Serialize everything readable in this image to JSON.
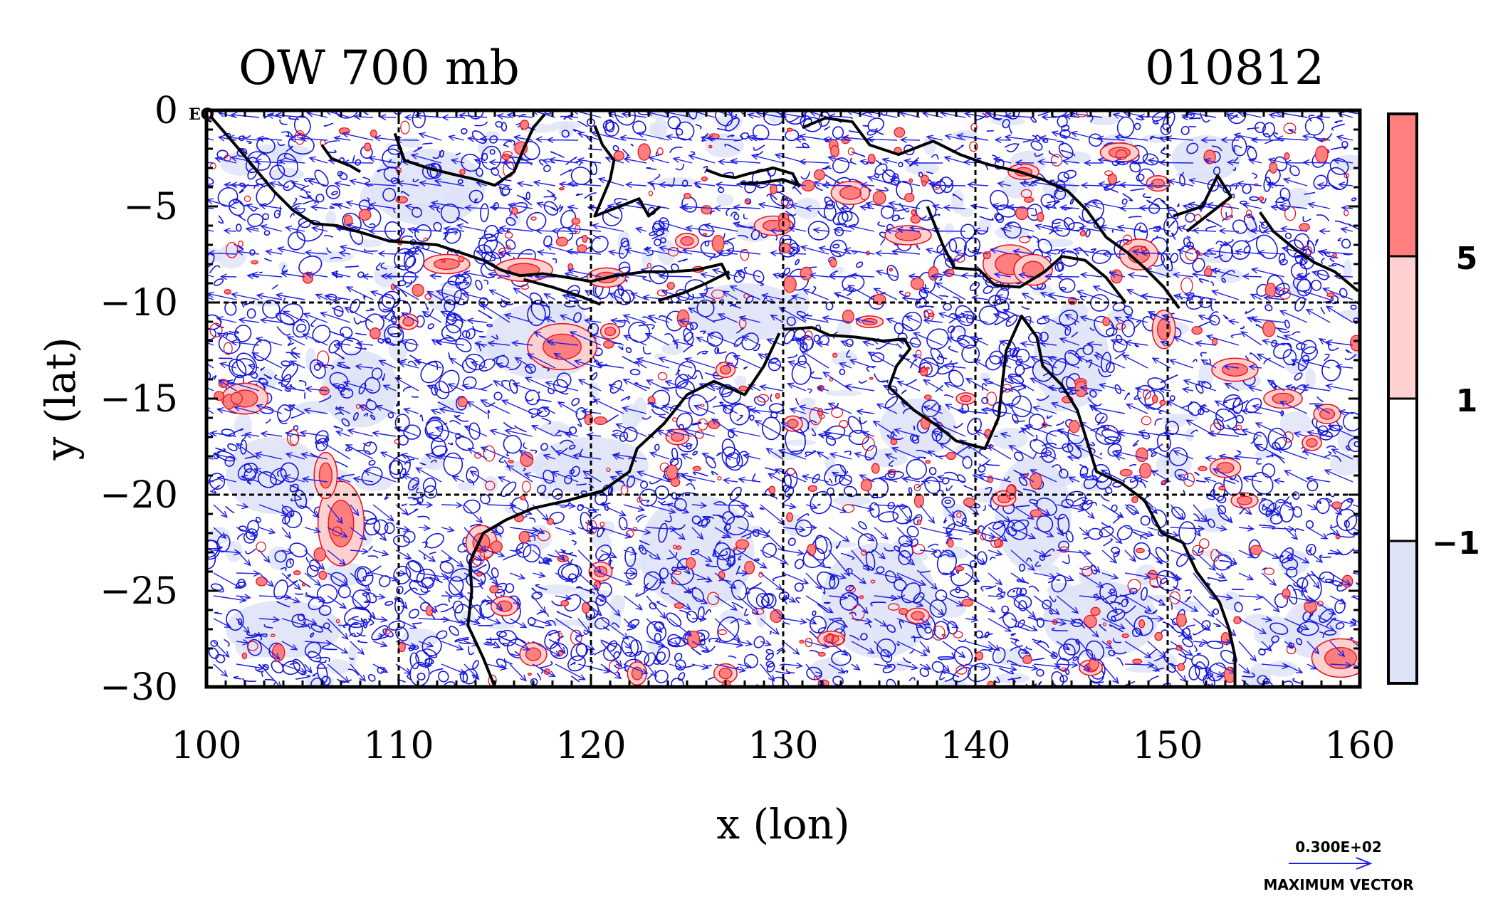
{
  "chart_data": {
    "type": "heatmap",
    "title_left": "OW 700 mb",
    "title_right": "010812",
    "xlabel": "x (lon)",
    "ylabel": "y (lat)",
    "xlim": [
      100,
      160
    ],
    "ylim": [
      -30,
      0
    ],
    "x_ticks": [
      100,
      110,
      120,
      130,
      140,
      150,
      160
    ],
    "y_ticks": [
      0,
      -5,
      -10,
      -15,
      -20,
      -25,
      -30
    ],
    "x_tick_labels": [
      "100",
      "110",
      "120",
      "130",
      "140",
      "150",
      "160"
    ],
    "y_tick_labels": [
      "0",
      "−5",
      "−10",
      "−15",
      "−20",
      "−25",
      "−30"
    ],
    "grid": "dashed-10deg",
    "corner_label": "EQ",
    "colorbar": {
      "levels": [
        -1,
        1,
        5
      ],
      "labels": [
        "5",
        "1",
        "−1"
      ],
      "colors": [
        "#ff7f7f",
        "#ffd0d0",
        "#ffffff",
        "#dde2f7"
      ]
    },
    "contour_colors": {
      "positive": "#e8141e",
      "negative": "#1414d8"
    },
    "vector_color": "#1f1fe6",
    "vector_key": {
      "value": "0.300E+02",
      "label": "MAXIMUM VECTOR"
    },
    "red_features": [
      [
        118.5,
        -12.3,
        1.8,
        1.2
      ],
      [
        102,
        -15,
        1.2,
        0.8
      ],
      [
        107,
        -21.5,
        1.2,
        2.2
      ],
      [
        106.2,
        -19,
        0.6,
        1.2
      ],
      [
        141.8,
        -8,
        1.4,
        1.0
      ],
      [
        143,
        -8.3,
        1.0,
        0.8
      ],
      [
        148.5,
        -7.5,
        1.0,
        0.8
      ],
      [
        149.8,
        -11.4,
        0.6,
        1.0
      ],
      [
        153.5,
        -13.5,
        1.2,
        0.6
      ],
      [
        156,
        -15,
        1.0,
        0.5
      ],
      [
        158.3,
        -15.8,
        0.7,
        0.5
      ],
      [
        159,
        -28.5,
        1.5,
        1.0
      ],
      [
        157.5,
        -17.3,
        0.5,
        0.4
      ],
      [
        153,
        -18.6,
        0.8,
        0.5
      ],
      [
        154,
        -20.3,
        0.7,
        0.4
      ],
      [
        136.5,
        -6.5,
        1.2,
        0.5
      ],
      [
        133.5,
        -4.3,
        1.0,
        0.6
      ],
      [
        129.5,
        -6.0,
        1.0,
        0.5
      ],
      [
        112.5,
        -8.0,
        1.2,
        0.5
      ],
      [
        116.5,
        -8.3,
        1.5,
        0.6
      ],
      [
        120.8,
        -8.7,
        1.0,
        0.5
      ],
      [
        125.0,
        -6.8,
        0.6,
        0.4
      ],
      [
        114.3,
        -22.5,
        0.8,
        0.9
      ],
      [
        115.5,
        -25.8,
        0.7,
        0.5
      ],
      [
        117.0,
        -28.3,
        0.7,
        0.6
      ],
      [
        120.5,
        -24.0,
        0.6,
        0.5
      ],
      [
        122.4,
        -29.3,
        0.5,
        0.6
      ],
      [
        127.0,
        -29.3,
        0.6,
        0.5
      ],
      [
        132.5,
        -27.5,
        0.7,
        0.4
      ],
      [
        137.0,
        -26.3,
        0.6,
        0.4
      ],
      [
        141.5,
        -20.2,
        0.6,
        0.4
      ],
      [
        146.0,
        -29.0,
        0.6,
        0.4
      ],
      [
        110.5,
        -11.0,
        0.5,
        0.4
      ],
      [
        124.5,
        -17.0,
        0.6,
        0.4
      ],
      [
        134.5,
        -11.0,
        0.7,
        0.3
      ],
      [
        139.5,
        -15.0,
        0.5,
        0.3
      ],
      [
        147.5,
        -2.2,
        1.0,
        0.5
      ],
      [
        149.5,
        -3.8,
        0.6,
        0.4
      ],
      [
        142.5,
        -3.2,
        0.8,
        0.4
      ],
      [
        130.5,
        -16.3,
        0.5,
        0.4
      ],
      [
        127.0,
        -13.5,
        0.5,
        0.4
      ],
      [
        121.0,
        -11.5,
        0.5,
        0.4
      ]
    ],
    "blue_features": [
      [
        117.5,
        -12.0,
        3.0,
        2.0
      ],
      [
        103.5,
        -19.0,
        2.5,
        2.0
      ],
      [
        108.0,
        -14.5,
        2.0,
        2.0
      ],
      [
        104.0,
        -27.0,
        3.0,
        1.5
      ],
      [
        125.5,
        -23.0,
        3.0,
        3.0
      ],
      [
        135.0,
        -25.5,
        3.0,
        3.0
      ],
      [
        143.0,
        -21.0,
        2.0,
        3.0
      ],
      [
        152.0,
        -2.5,
        1.8,
        1.2
      ],
      [
        145.0,
        -13.0,
        2.0,
        2.5
      ],
      [
        137.0,
        -16.5,
        2.0,
        1.5
      ],
      [
        128.0,
        -10.5,
        3.0,
        1.5
      ],
      [
        111.5,
        -4.0,
        3.0,
        2.0
      ],
      [
        157.5,
        -27.0,
        1.5,
        1.5
      ],
      [
        146.5,
        -26.5,
        3.0,
        2.0
      ],
      [
        120.0,
        -18.5,
        3.0,
        1.5
      ]
    ],
    "coastlines": [
      [
        [
          100.2,
          -0.3
        ],
        [
          101.5,
          -1.8
        ],
        [
          102.5,
          -3.0
        ],
        [
          103.5,
          -4.2
        ],
        [
          104.5,
          -5.2
        ],
        [
          105.6,
          -5.9
        ],
        [
          106.8,
          -6.0
        ],
        [
          108.2,
          -6.4
        ],
        [
          109.5,
          -6.8
        ],
        [
          110.8,
          -6.9
        ],
        [
          112.0,
          -7.0
        ],
        [
          113.2,
          -7.4
        ],
        [
          114.4,
          -7.8
        ],
        [
          115.3,
          -8.3
        ],
        [
          116.3,
          -8.6
        ],
        [
          117.5,
          -8.5
        ],
        [
          118.8,
          -8.7
        ],
        [
          120.0,
          -8.9
        ],
        [
          121.3,
          -8.6
        ],
        [
          122.8,
          -8.4
        ],
        [
          124.2,
          -8.4
        ],
        [
          125.5,
          -8.3
        ],
        [
          126.8,
          -8.0
        ],
        [
          127.2,
          -8.8
        ]
      ],
      [
        [
          109.8,
          -1.2
        ],
        [
          110.3,
          -2.6
        ],
        [
          111.5,
          -3.0
        ],
        [
          112.7,
          -3.3
        ],
        [
          114.0,
          -3.6
        ],
        [
          115.0,
          -3.9
        ],
        [
          116.0,
          -3.2
        ],
        [
          116.5,
          -2.0
        ],
        [
          117.0,
          -0.9
        ],
        [
          117.6,
          -0.2
        ]
      ],
      [
        [
          120.2,
          -0.8
        ],
        [
          120.6,
          -1.8
        ],
        [
          121.2,
          -2.6
        ],
        [
          121.0,
          -3.6
        ],
        [
          120.5,
          -4.8
        ],
        [
          120.2,
          -5.5
        ],
        [
          121.5,
          -5.0
        ],
        [
          122.5,
          -4.6
        ],
        [
          123.0,
          -5.5
        ],
        [
          123.6,
          -5.0
        ]
      ],
      [
        [
          126.0,
          -3.1
        ],
        [
          126.8,
          -3.4
        ],
        [
          127.5,
          -3.5
        ],
        [
          128.2,
          -3.3
        ],
        [
          129.5,
          -3.0
        ],
        [
          130.5,
          -3.3
        ],
        [
          130.8,
          -3.9
        ],
        [
          130.0,
          -3.6
        ],
        [
          128.6,
          -3.8
        ],
        [
          127.8,
          -3.8
        ]
      ],
      [
        [
          131.0,
          -0.9
        ],
        [
          132.2,
          -0.4
        ],
        [
          133.6,
          -0.6
        ],
        [
          134.5,
          -1.8
        ],
        [
          136.0,
          -2.3
        ],
        [
          137.8,
          -1.6
        ],
        [
          139.2,
          -2.3
        ],
        [
          140.6,
          -2.8
        ],
        [
          142.3,
          -3.2
        ],
        [
          143.5,
          -3.6
        ],
        [
          144.8,
          -4.2
        ],
        [
          145.8,
          -5.2
        ],
        [
          146.8,
          -6.6
        ],
        [
          147.9,
          -7.4
        ],
        [
          148.8,
          -8.2
        ],
        [
          149.8,
          -9.2
        ],
        [
          150.6,
          -10.3
        ]
      ],
      [
        [
          137.5,
          -5.0
        ],
        [
          138.3,
          -7.0
        ],
        [
          138.9,
          -8.2
        ],
        [
          140.2,
          -8.3
        ],
        [
          141.0,
          -9.1
        ],
        [
          142.3,
          -9.2
        ],
        [
          143.6,
          -8.4
        ],
        [
          144.5,
          -7.6
        ],
        [
          145.7,
          -7.8
        ],
        [
          146.8,
          -8.7
        ],
        [
          147.8,
          -10.0
        ]
      ],
      [
        [
          150.3,
          -5.5
        ],
        [
          151.8,
          -5.0
        ],
        [
          152.2,
          -4.2
        ],
        [
          152.6,
          -3.4
        ],
        [
          153.3,
          -4.5
        ],
        [
          151.0,
          -6.3
        ]
      ],
      [
        [
          154.8,
          -5.3
        ],
        [
          155.5,
          -6.3
        ],
        [
          156.6,
          -7.2
        ],
        [
          157.6,
          -7.9
        ],
        [
          158.7,
          -8.4
        ],
        [
          159.9,
          -9.4
        ]
      ],
      [
        [
          130.0,
          -11.4
        ],
        [
          131.5,
          -11.3
        ],
        [
          132.4,
          -11.7
        ],
        [
          133.8,
          -11.8
        ],
        [
          135.2,
          -12.0
        ],
        [
          136.3,
          -11.9
        ],
        [
          136.6,
          -12.4
        ],
        [
          135.9,
          -13.3
        ],
        [
          135.5,
          -14.4
        ],
        [
          136.8,
          -15.6
        ],
        [
          138.0,
          -16.4
        ],
        [
          139.0,
          -17.2
        ],
        [
          140.5,
          -17.6
        ],
        [
          141.2,
          -16.0
        ],
        [
          141.4,
          -14.2
        ],
        [
          141.6,
          -12.5
        ],
        [
          142.4,
          -10.7
        ],
        [
          143.2,
          -11.8
        ],
        [
          143.5,
          -13.3
        ],
        [
          144.5,
          -14.3
        ],
        [
          145.3,
          -15.6
        ],
        [
          145.8,
          -17.2
        ],
        [
          146.3,
          -18.8
        ],
        [
          147.6,
          -19.4
        ],
        [
          148.8,
          -20.3
        ],
        [
          149.7,
          -22.0
        ],
        [
          150.8,
          -22.5
        ],
        [
          151.5,
          -24.0
        ],
        [
          152.7,
          -25.6
        ],
        [
          153.2,
          -27.0
        ],
        [
          153.5,
          -28.4
        ],
        [
          153.5,
          -30.0
        ]
      ],
      [
        [
          129.8,
          -11.6
        ],
        [
          129.0,
          -13.3
        ],
        [
          128.0,
          -14.8
        ],
        [
          126.4,
          -14.1
        ],
        [
          125.0,
          -14.8
        ],
        [
          123.8,
          -16.3
        ],
        [
          122.4,
          -17.6
        ],
        [
          122.0,
          -18.8
        ],
        [
          120.6,
          -19.8
        ],
        [
          118.8,
          -20.3
        ],
        [
          117.0,
          -20.7
        ],
        [
          115.6,
          -21.3
        ],
        [
          114.4,
          -22.0
        ],
        [
          113.7,
          -23.5
        ],
        [
          113.8,
          -25.0
        ],
        [
          113.6,
          -26.8
        ],
        [
          114.4,
          -28.5
        ],
        [
          115.0,
          -30.0
        ]
      ],
      [
        [
          106.0,
          -1.8
        ],
        [
          106.5,
          -2.5
        ],
        [
          107.5,
          -2.9
        ],
        [
          108.0,
          -3.2
        ]
      ],
      [
        [
          116.5,
          -8.8
        ],
        [
          118.0,
          -9.2
        ],
        [
          119.5,
          -9.7
        ],
        [
          120.5,
          -10.1
        ]
      ],
      [
        [
          123.5,
          -9.9
        ],
        [
          124.8,
          -9.5
        ],
        [
          126.0,
          -9.0
        ],
        [
          127.2,
          -8.4
        ]
      ]
    ]
  }
}
